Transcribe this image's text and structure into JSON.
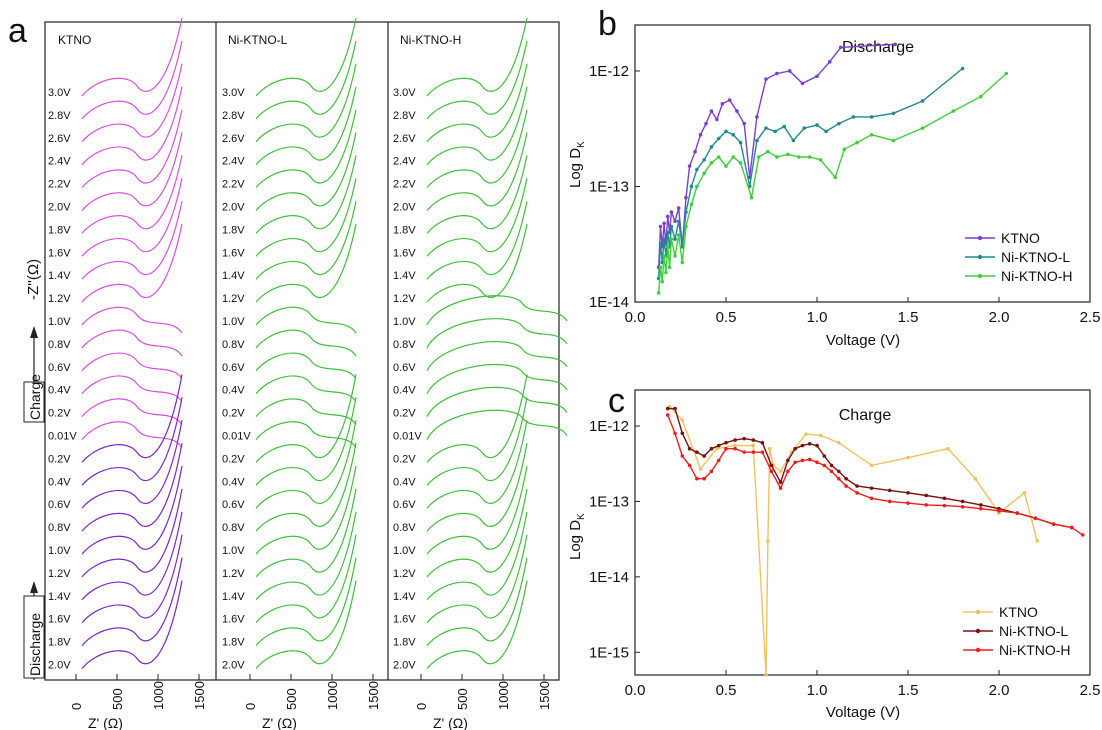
{
  "panel_letters": [
    "a",
    "b",
    "c"
  ],
  "panel_a": {
    "ylabel": "-Z''(Ω)",
    "xlabel": "Z' (Ω)",
    "charge_label": "Charge",
    "discharge_label": "Discharge",
    "x_ticks": [
      "0",
      "500",
      "1000",
      "1500"
    ],
    "colors": {
      "discharge_ktno": "#7a24c9",
      "charge_ktno": "#d74ee0",
      "nickel": "#3dbf3a"
    },
    "columns": [
      {
        "title": "KTNO"
      },
      {
        "title": "Ni-KTNO-L"
      },
      {
        "title": "Ni-KTNO-H"
      }
    ],
    "voltage_labels": [
      "3.0V",
      "2.8V",
      "2.6V",
      "2.4V",
      "2.2V",
      "2.0V",
      "1.8V",
      "1.6V",
      "1.4V",
      "1.2V",
      "1.0V",
      "0.8V",
      "0.6V",
      "0.4V",
      "0.2V",
      "0.01V",
      "0.2V",
      "0.4V",
      "0.6V",
      "0.8V",
      "1.0V",
      "1.2V",
      "1.4V",
      "1.6V",
      "1.8V",
      "2.0V"
    ],
    "first_voltage_labels": [
      "3.0V",
      "2.8V",
      "2.6V",
      "2.4V",
      "2.2V",
      "2.0V",
      "1.8V",
      "1.6V",
      "1.4V",
      "1.2V",
      "1.0V",
      "0.8V",
      "0.6V",
      "0.4V",
      "0.2V",
      "0.01V",
      "0.2V",
      "0.4V",
      "0.6V",
      "0.8V",
      "1.0V",
      "1.2V",
      "1.4V",
      "1.6V",
      "1.8V",
      "2.0V"
    ]
  },
  "chart_data": [
    {
      "type": "line",
      "panel": "b",
      "title": "Discharge",
      "xlabel": "Voltage (V)",
      "ylabel": "Log D",
      "ylabel_sub": "K",
      "xlim": [
        0.0,
        2.5
      ],
      "ylim": [
        1e-14,
        2.5e-12
      ],
      "yscale": "log",
      "x_ticks": [
        "0.0",
        "0.5",
        "1.0",
        "1.5",
        "2.0",
        "2.5"
      ],
      "y_ticks": [
        {
          "v": 1e-14,
          "label": "1E-14"
        },
        {
          "v": 1e-13,
          "label": "1E-13"
        },
        {
          "v": 1e-12,
          "label": "1E-12"
        }
      ],
      "legend_position": "right",
      "series": [
        {
          "name": "KTNO",
          "color": "#7b3fd0",
          "x": [
            0.13,
            0.14,
            0.15,
            0.16,
            0.17,
            0.18,
            0.19,
            0.2,
            0.22,
            0.24,
            0.26,
            0.28,
            0.3,
            0.33,
            0.36,
            0.39,
            0.42,
            0.45,
            0.48,
            0.52,
            0.56,
            0.6,
            0.63,
            0.67,
            0.72,
            0.78,
            0.85,
            0.92,
            1.0,
            1.07,
            1.13,
            1.43
          ],
          "y": [
            2e-14,
            4.5e-14,
            3e-14,
            4.8e-14,
            3.2e-14,
            5.5e-14,
            4e-14,
            6e-14,
            5e-14,
            6.5e-14,
            3e-14,
            8e-14,
            1.5e-13,
            2e-13,
            2.8e-13,
            3.5e-13,
            4.5e-13,
            3.8e-13,
            5.2e-13,
            5.6e-13,
            4.5e-13,
            3.5e-13,
            1.2e-13,
            4e-13,
            8.5e-13,
            9.5e-13,
            1e-12,
            7.8e-13,
            9e-13,
            1.2e-12,
            1.6e-12,
            1.7e-12
          ]
        },
        {
          "name": "Ni-KTNO-L",
          "color": "#1f8a92",
          "x": [
            0.13,
            0.14,
            0.15,
            0.16,
            0.17,
            0.18,
            0.19,
            0.2,
            0.22,
            0.24,
            0.26,
            0.28,
            0.31,
            0.34,
            0.38,
            0.42,
            0.46,
            0.5,
            0.54,
            0.58,
            0.63,
            0.67,
            0.72,
            0.77,
            0.82,
            0.87,
            0.93,
            1.0,
            1.05,
            1.12,
            1.2,
            1.3,
            1.42,
            1.58,
            1.8
          ],
          "y": [
            1.6e-14,
            3.2e-14,
            2.2e-14,
            3.5e-14,
            2.5e-14,
            4e-14,
            3e-14,
            4.5e-14,
            3.5e-14,
            5e-14,
            3e-14,
            6e-14,
            1e-13,
            1.4e-13,
            1.7e-13,
            2.2e-13,
            2.6e-13,
            3e-13,
            2.8e-13,
            2.4e-13,
            1e-13,
            2.5e-13,
            3.2e-13,
            3e-13,
            3.3e-13,
            2.5e-13,
            3.2e-13,
            3.4e-13,
            3e-13,
            3.5e-13,
            4e-13,
            4e-13,
            4.3e-13,
            5.5e-13,
            1.05e-12
          ]
        },
        {
          "name": "Ni-KTNO-H",
          "color": "#3fcf3a",
          "x": [
            0.13,
            0.14,
            0.15,
            0.16,
            0.17,
            0.18,
            0.19,
            0.2,
            0.22,
            0.24,
            0.26,
            0.28,
            0.31,
            0.34,
            0.38,
            0.42,
            0.46,
            0.5,
            0.54,
            0.58,
            0.64,
            0.68,
            0.73,
            0.78,
            0.84,
            0.9,
            0.96,
            1.02,
            1.1,
            1.15,
            1.22,
            1.3,
            1.42,
            1.58,
            1.75,
            1.9,
            2.04
          ],
          "y": [
            1.2e-14,
            2e-14,
            1.5e-14,
            2.5e-14,
            1.8e-14,
            3e-14,
            2e-14,
            3.5e-14,
            2.5e-14,
            3.8e-14,
            2.2e-14,
            4.5e-14,
            7e-14,
            1e-13,
            1.3e-13,
            1.6e-13,
            1.8e-13,
            1.5e-13,
            1.8e-13,
            1.6e-13,
            8e-14,
            1.8e-13,
            2e-13,
            1.8e-13,
            1.9e-13,
            1.8e-13,
            1.8e-13,
            1.7e-13,
            1.2e-13,
            2.1e-13,
            2.4e-13,
            2.8e-13,
            2.5e-13,
            3.2e-13,
            4.5e-13,
            6e-13,
            9.5e-13
          ]
        }
      ]
    },
    {
      "type": "line",
      "panel": "c",
      "title": "Charge",
      "xlabel": "Voltage (V)",
      "ylabel": "Log D",
      "ylabel_sub": "K",
      "xlim": [
        0.0,
        2.5
      ],
      "ylim": [
        5e-16,
        3e-12
      ],
      "yscale": "log",
      "x_ticks": [
        "0.0",
        "0.5",
        "1.0",
        "1.5",
        "2.0",
        "2.5"
      ],
      "y_ticks": [
        {
          "v": 1e-15,
          "label": "1E-15"
        },
        {
          "v": 1e-14,
          "label": "1E-14"
        },
        {
          "v": 1e-13,
          "label": "1E-13"
        },
        {
          "v": 1e-12,
          "label": "1E-12"
        }
      ],
      "legend_position": "bottom-right",
      "series": [
        {
          "name": "KTNO",
          "color": "#f0c25e",
          "x": [
            0.19,
            0.26,
            0.36,
            0.45,
            0.55,
            0.65,
            0.72,
            0.73,
            0.74,
            0.76,
            0.8,
            0.86,
            0.94,
            1.02,
            1.12,
            1.3,
            1.5,
            1.72,
            1.87,
            2.0,
            2.14,
            2.21
          ],
          "y": [
            1.8e-12,
            1.2e-12,
            2.7e-13,
            5e-13,
            5.5e-13,
            5.5e-13,
            5e-16,
            3e-14,
            5e-13,
            3e-13,
            2.5e-13,
            4.5e-13,
            7.8e-13,
            7.5e-13,
            6e-13,
            3e-13,
            3.8e-13,
            5e-13,
            2e-13,
            7e-14,
            1.3e-13,
            3e-14
          ]
        },
        {
          "name": "Ni-KTNO-L",
          "color": "#7a1010",
          "x": [
            0.18,
            0.22,
            0.26,
            0.3,
            0.34,
            0.38,
            0.42,
            0.46,
            0.5,
            0.55,
            0.6,
            0.65,
            0.7,
            0.75,
            0.8,
            0.84,
            0.88,
            0.92,
            0.96,
            1.0,
            1.04,
            1.08,
            1.12,
            1.16,
            1.22,
            1.3,
            1.4,
            1.5,
            1.6,
            1.7,
            1.8,
            1.9,
            2.0,
            2.1,
            2.2,
            2.3,
            2.4
          ],
          "y": [
            1.7e-12,
            1.7e-12,
            8e-13,
            5e-13,
            4.5e-13,
            4e-13,
            5e-13,
            5.5e-13,
            6e-13,
            6.5e-13,
            6.8e-13,
            6.5e-13,
            6e-13,
            3e-13,
            1.8e-13,
            3.5e-13,
            5e-13,
            5.5e-13,
            5.8e-13,
            5.5e-13,
            4e-13,
            3e-13,
            2.5e-13,
            2e-13,
            1.6e-13,
            1.5e-13,
            1.4e-13,
            1.3e-13,
            1.2e-13,
            1.1e-13,
            1e-13,
            9e-14,
            8e-14,
            7e-14,
            6e-14,
            5e-14,
            4.5e-14
          ]
        },
        {
          "name": "Ni-KTNO-H",
          "color": "#f01d1d",
          "x": [
            0.18,
            0.22,
            0.26,
            0.3,
            0.34,
            0.38,
            0.42,
            0.46,
            0.5,
            0.55,
            0.6,
            0.65,
            0.7,
            0.75,
            0.8,
            0.84,
            0.88,
            0.92,
            0.96,
            1.0,
            1.04,
            1.08,
            1.12,
            1.16,
            1.22,
            1.3,
            1.4,
            1.5,
            1.6,
            1.7,
            1.8,
            1.9,
            2.0,
            2.1,
            2.2,
            2.3,
            2.4,
            2.46
          ],
          "y": [
            1.4e-12,
            8e-13,
            4e-13,
            3e-13,
            2e-13,
            2e-13,
            2.5e-13,
            3.5e-13,
            5e-13,
            5e-13,
            4.5e-13,
            4.5e-13,
            4.5e-13,
            2.5e-13,
            1.5e-13,
            2.5e-13,
            3.3e-13,
            3.5e-13,
            3.6e-13,
            3.3e-13,
            3e-13,
            2.5e-13,
            2e-13,
            1.6e-13,
            1.3e-13,
            1.1e-13,
            1e-13,
            9.5e-14,
            9e-14,
            8.8e-14,
            8.5e-14,
            8e-14,
            7.5e-14,
            7e-14,
            6e-14,
            5e-14,
            4.5e-14,
            3.6e-14
          ]
        }
      ]
    }
  ]
}
